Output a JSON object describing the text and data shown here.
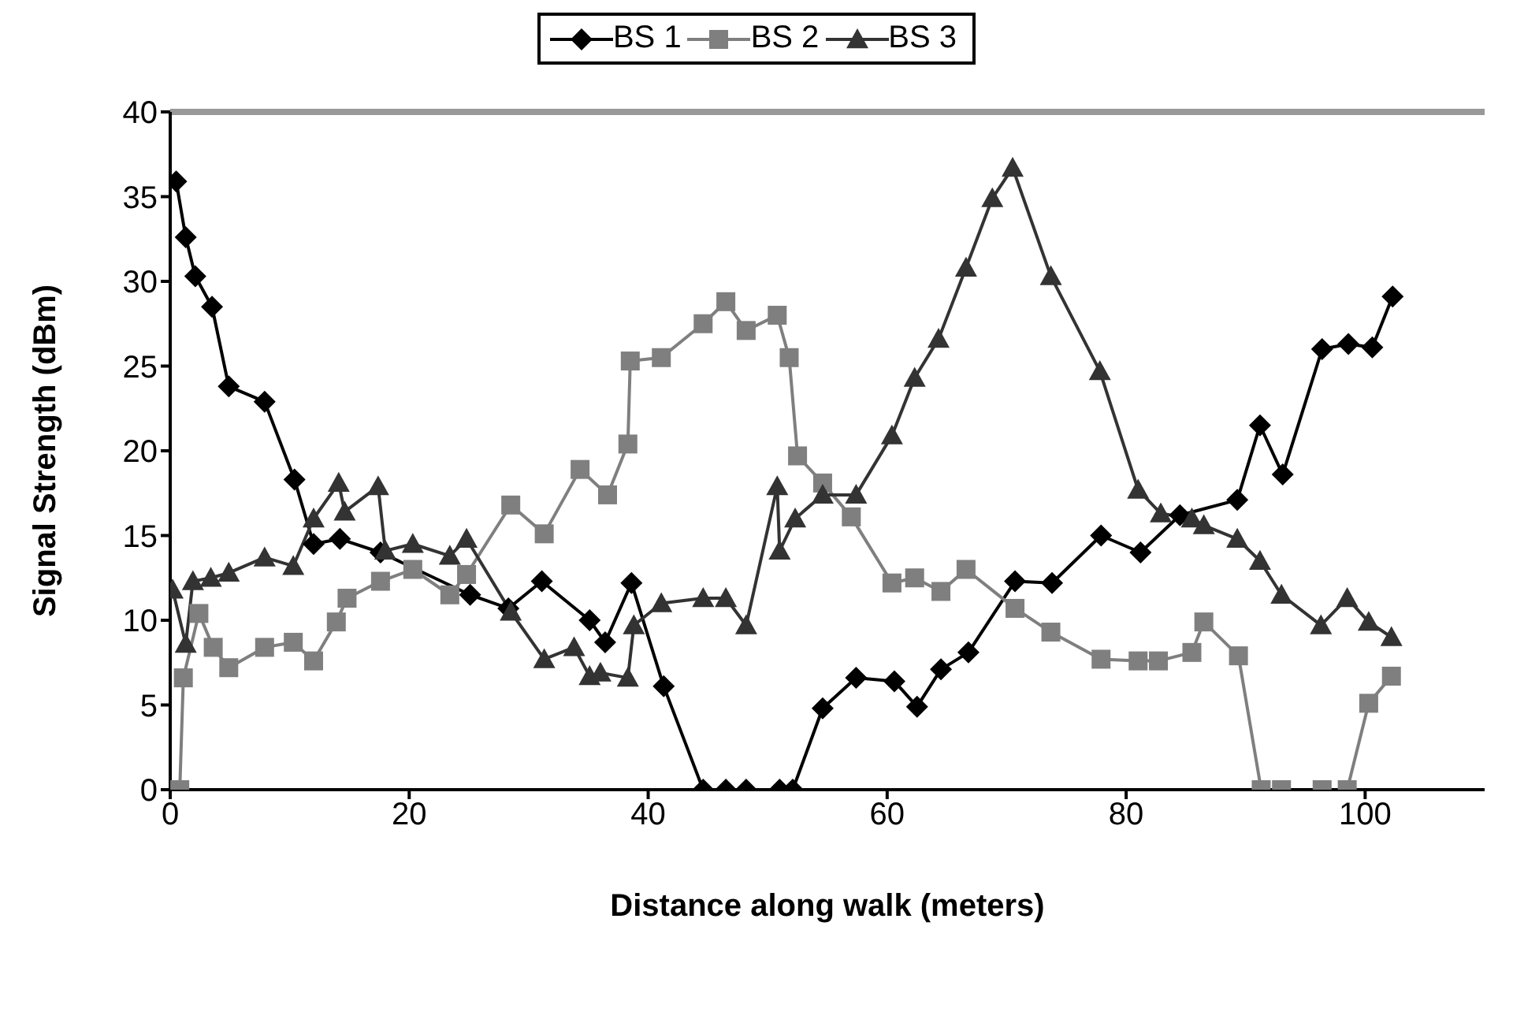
{
  "chart_data": {
    "type": "line",
    "xlabel": "Distance along walk (meters)",
    "ylabel": "Signal Strength (dBm)",
    "xlim": [
      0,
      110
    ],
    "xticks": [
      0,
      20,
      40,
      60,
      80,
      100
    ],
    "ylim": [
      0,
      40
    ],
    "yticks": [
      0,
      5,
      10,
      15,
      20,
      25,
      30,
      35,
      40
    ],
    "legend": "top",
    "line_style": "solid",
    "ref_lines": [
      {
        "axis": "y",
        "value": 40,
        "color": "#999999"
      }
    ],
    "series": [
      {
        "name": "BS 1",
        "color": "#000000",
        "marker": "diamond",
        "x": [
          0.5,
          1.3,
          2.1,
          3.5,
          4.9,
          7.9,
          10.4,
          12,
          14.2,
          17.6,
          25.1,
          28.3,
          31.1,
          35.1,
          36.4,
          38.6,
          41.3,
          44.6,
          46.5,
          48.2,
          51,
          52.1,
          54.6,
          57.4,
          60.6,
          62.5,
          64.5,
          66.8,
          70.7,
          73.8,
          77.9,
          81.2,
          84.5,
          89.3,
          91.2,
          93.1,
          96.4,
          98.6,
          100.6,
          102.3
        ],
        "values": [
          35.9,
          32.6,
          30.3,
          28.5,
          23.8,
          22.9,
          18.3,
          14.5,
          14.8,
          14,
          11.5,
          10.7,
          12.3,
          10,
          8.7,
          12.2,
          6.1,
          0,
          0,
          0,
          0,
          0,
          4.8,
          6.6,
          6.4,
          4.9,
          7.1,
          8.1,
          12.3,
          12.2,
          15,
          14,
          16.2,
          17.1,
          21.5,
          18.6,
          26,
          26.3,
          26.1,
          29.1
        ]
      },
      {
        "name": "BS 2",
        "color": "#7f7f7f",
        "marker": "square",
        "x": [
          0.8,
          1.1,
          2.4,
          3.6,
          4.9,
          7.9,
          10.3,
          12,
          13.9,
          14.8,
          17.6,
          20.3,
          23.4,
          24.8,
          28.5,
          31.3,
          34.3,
          36.6,
          38.3,
          38.5,
          41.1,
          44.6,
          46.5,
          48.2,
          50.8,
          51.8,
          52.5,
          54.6,
          57,
          60.4,
          62.3,
          64.5,
          66.6,
          70.7,
          73.7,
          77.9,
          81,
          82.7,
          85.5,
          86.5,
          89.4,
          91.3,
          93,
          96.4,
          98.5,
          100.3,
          102.2
        ],
        "values": [
          0,
          6.6,
          10.4,
          8.4,
          7.2,
          8.4,
          8.7,
          7.6,
          9.9,
          11.3,
          12.3,
          13,
          11.5,
          12.7,
          16.8,
          15.1,
          18.9,
          17.4,
          20.4,
          25.3,
          25.5,
          27.5,
          28.8,
          27.1,
          28,
          25.5,
          19.7,
          18.1,
          16.1,
          12.2,
          12.5,
          11.7,
          13,
          10.7,
          9.3,
          7.7,
          7.6,
          7.6,
          8.1,
          9.9,
          7.9,
          0,
          0,
          0,
          0,
          5.1,
          6.7
        ]
      },
      {
        "name": "BS 3",
        "color": "#333333",
        "marker": "triangle",
        "x": [
          0.2,
          1.3,
          1.9,
          3.4,
          4.9,
          7.9,
          10.3,
          12,
          14.1,
          14.6,
          17.4,
          18,
          20.3,
          23.4,
          24.8,
          28.5,
          31.3,
          33.8,
          35.1,
          36,
          38.3,
          38.8,
          41.1,
          44.6,
          46.5,
          48.2,
          50.8,
          51,
          52.3,
          54.6,
          57.4,
          60.4,
          62.3,
          64.3,
          66.6,
          68.8,
          70.5,
          73.7,
          77.8,
          81,
          82.9,
          85.5,
          86.5,
          89.3,
          91.2,
          93,
          96.3,
          98.5,
          100.3,
          102.2
        ],
        "values": [
          11.8,
          8.6,
          12.3,
          12.5,
          12.8,
          13.7,
          13.2,
          16,
          18.1,
          16.4,
          17.9,
          14.1,
          14.5,
          13.8,
          14.8,
          10.5,
          7.7,
          8.4,
          6.7,
          6.9,
          6.6,
          9.7,
          11,
          11.3,
          11.3,
          9.7,
          17.9,
          14.1,
          16,
          17.4,
          17.4,
          20.9,
          24.3,
          26.6,
          30.8,
          34.9,
          36.7,
          30.3,
          24.7,
          17.7,
          16.3,
          16,
          15.6,
          14.8,
          13.5,
          11.5,
          9.7,
          11.3,
          9.9,
          9
        ]
      }
    ]
  }
}
